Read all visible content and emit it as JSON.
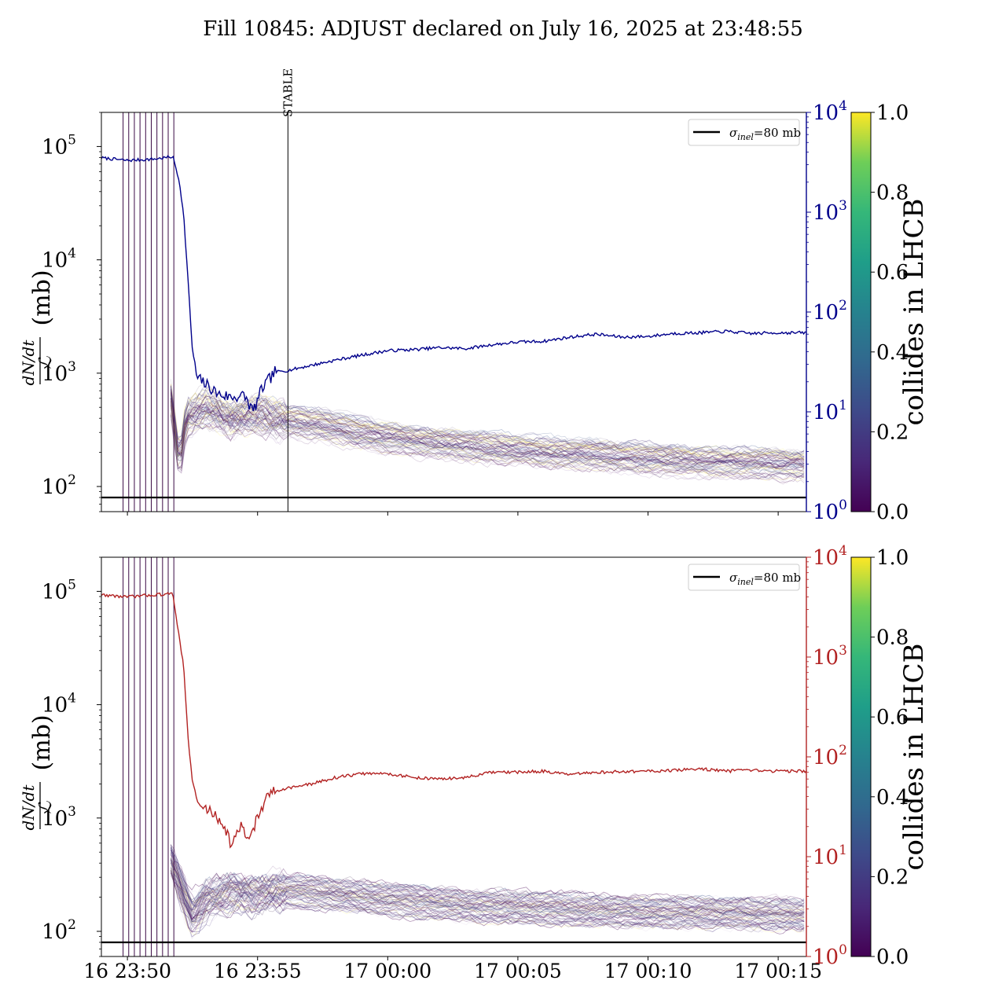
{
  "figure": {
    "title": "Fill 10845: ADJUST declared on July 16, 2025 at 23:48:55"
  },
  "chart_data": [
    {
      "type": "line",
      "panel": "top",
      "ylabel_left": "dN/dt / ℒ (mb)",
      "yscale_left": "log",
      "ylim_left": [
        60,
        200000
      ],
      "yticks_left": [
        "10^2",
        "10^3",
        "10^4",
        "10^5"
      ],
      "yscale_right": "log",
      "ylim_right": [
        1,
        10000
      ],
      "yticks_right": [
        "10^0",
        "10^1",
        "10^2",
        "10^3",
        "10^4"
      ],
      "right_axis_color": "#00008b",
      "xlim": [
        "23:49:00",
        "00:16:05"
      ],
      "xticks": [
        "16 23:50",
        "16 23:55",
        "17 00:00",
        "17 00:05",
        "17 00:10",
        "17 00:15"
      ],
      "xtick_labels_visible": false,
      "legend": {
        "position": "top-right",
        "entries": [
          {
            "label": "σ_inel=80 mb",
            "color": "#000000"
          }
        ]
      },
      "hline": {
        "y": 80,
        "label": "σ_inel=80 mb",
        "color": "#000000"
      },
      "vline_annotation": {
        "x": "23:56:10",
        "label": "STABLE"
      },
      "vlines_early": [
        "23:49:50",
        "23:50:03",
        "23:50:16",
        "23:50:29",
        "23:50:42",
        "23:50:55",
        "23:51:08",
        "23:51:21",
        "23:51:34",
        "23:51:47"
      ],
      "right_series": {
        "color": "#00008b",
        "points": [
          [
            "23:49:00",
            3500
          ],
          [
            "23:50:00",
            3300
          ],
          [
            "23:51:00",
            3400
          ],
          [
            "23:51:45",
            3600
          ],
          [
            "23:52:00",
            2000
          ],
          [
            "23:52:10",
            900
          ],
          [
            "23:52:20",
            200
          ],
          [
            "23:52:30",
            40
          ],
          [
            "23:52:40",
            22
          ],
          [
            "23:53:00",
            19
          ],
          [
            "23:53:30",
            15
          ],
          [
            "23:54:00",
            14
          ],
          [
            "23:54:30",
            14.5
          ],
          [
            "23:54:50",
            10
          ],
          [
            "23:55:10",
            17
          ],
          [
            "23:55:40",
            25
          ],
          [
            "23:56:10",
            26
          ],
          [
            "23:57:00",
            29
          ],
          [
            "23:58:00",
            33
          ],
          [
            "23:59:00",
            37
          ],
          [
            "00:00:00",
            41
          ],
          [
            "00:01:00",
            42
          ],
          [
            "00:02:00",
            44
          ],
          [
            "00:03:00",
            43
          ],
          [
            "00:04:00",
            47
          ],
          [
            "00:05:00",
            50
          ],
          [
            "00:06:00",
            51
          ],
          [
            "00:07:00",
            56
          ],
          [
            "00:08:00",
            60
          ],
          [
            "00:09:00",
            56
          ],
          [
            "00:10:00",
            57
          ],
          [
            "00:11:00",
            61
          ],
          [
            "00:12:00",
            62
          ],
          [
            "00:13:00",
            64
          ],
          [
            "00:14:00",
            61
          ],
          [
            "00:15:00",
            62
          ],
          [
            "00:16:05",
            62
          ]
        ]
      },
      "bunch_band": {
        "colormap": "viridis",
        "centre": [
          [
            "23:51:40",
            600
          ],
          [
            "23:52:00",
            150
          ],
          [
            "23:52:15",
            400
          ],
          [
            "23:53:00",
            500
          ],
          [
            "23:54:00",
            380
          ],
          [
            "23:55:00",
            430
          ],
          [
            "23:56:00",
            380
          ],
          [
            "23:57:00",
            360
          ],
          [
            "23:58:00",
            330
          ],
          [
            "00:00:00",
            270
          ],
          [
            "00:02:00",
            240
          ],
          [
            "00:04:00",
            220
          ],
          [
            "00:06:00",
            200
          ],
          [
            "00:08:00",
            190
          ],
          [
            "00:10:00",
            175
          ],
          [
            "00:12:00",
            165
          ],
          [
            "00:14:00",
            160
          ],
          [
            "00:16:00",
            155
          ]
        ],
        "spread_low": 0.72,
        "spread_high": 1.35
      },
      "colorbar": {
        "label": "collides in LHCB",
        "range": [
          0.0,
          1.0
        ],
        "ticks": [
          "0.0",
          "0.2",
          "0.4",
          "0.6",
          "0.8",
          "1.0"
        ]
      }
    },
    {
      "type": "line",
      "panel": "bottom",
      "ylabel_left": "dN/dt / ℒ (mb)",
      "yscale_left": "log",
      "ylim_left": [
        60,
        200000
      ],
      "yticks_left": [
        "10^2",
        "10^3",
        "10^4",
        "10^5"
      ],
      "yscale_right": "log",
      "ylim_right": [
        1,
        10000
      ],
      "yticks_right": [
        "10^0",
        "10^1",
        "10^2",
        "10^3",
        "10^4"
      ],
      "right_axis_color": "#b22222",
      "xlim": [
        "23:49:00",
        "00:16:05"
      ],
      "xticks": [
        "16 23:50",
        "16 23:55",
        "17 00:00",
        "17 00:05",
        "17 00:10",
        "17 00:15"
      ],
      "xtick_labels_visible": true,
      "legend": {
        "position": "top-right",
        "entries": [
          {
            "label": "σ_inel=80 mb",
            "color": "#000000"
          }
        ]
      },
      "hline": {
        "y": 80,
        "label": "σ_inel=80 mb",
        "color": "#000000"
      },
      "vlines_early": [
        "23:49:50",
        "23:50:03",
        "23:50:16",
        "23:50:29",
        "23:50:42",
        "23:50:55",
        "23:51:08",
        "23:51:21",
        "23:51:34",
        "23:51:47"
      ],
      "right_series": {
        "color": "#b22222",
        "points": [
          [
            "23:49:00",
            4200
          ],
          [
            "23:50:00",
            4000
          ],
          [
            "23:51:00",
            4200
          ],
          [
            "23:51:45",
            4300
          ],
          [
            "23:52:00",
            1500
          ],
          [
            "23:52:10",
            800
          ],
          [
            "23:52:20",
            150
          ],
          [
            "23:52:30",
            55
          ],
          [
            "23:52:45",
            32
          ],
          [
            "23:53:10",
            29
          ],
          [
            "23:53:40",
            22
          ],
          [
            "23:54:00",
            13
          ],
          [
            "23:54:20",
            20
          ],
          [
            "23:54:40",
            15
          ],
          [
            "23:55:00",
            25
          ],
          [
            "23:55:30",
            44
          ],
          [
            "23:56:00",
            48
          ],
          [
            "23:57:00",
            53
          ],
          [
            "23:58:00",
            62
          ],
          [
            "23:59:00",
            68
          ],
          [
            "00:00:00",
            68
          ],
          [
            "00:01:00",
            62
          ],
          [
            "00:02:00",
            60
          ],
          [
            "00:03:00",
            62
          ],
          [
            "00:04:00",
            70
          ],
          [
            "00:05:00",
            70
          ],
          [
            "00:06:00",
            72
          ],
          [
            "00:07:00",
            66
          ],
          [
            "00:08:00",
            70
          ],
          [
            "00:09:00",
            71
          ],
          [
            "00:10:00",
            72
          ],
          [
            "00:11:00",
            73
          ],
          [
            "00:12:00",
            76
          ],
          [
            "00:13:00",
            72
          ],
          [
            "00:14:00",
            73
          ],
          [
            "00:15:00",
            72
          ],
          [
            "00:16:05",
            72
          ]
        ]
      },
      "bunch_band": {
        "colormap": "viridis",
        "centre": [
          [
            "23:51:40",
            400
          ],
          [
            "23:52:10",
            200
          ],
          [
            "23:52:30",
            130
          ],
          [
            "23:53:00",
            180
          ],
          [
            "23:54:00",
            210
          ],
          [
            "23:55:00",
            200
          ],
          [
            "23:56:00",
            220
          ],
          [
            "23:57:00",
            210
          ],
          [
            "23:58:00",
            200
          ],
          [
            "00:00:00",
            180
          ],
          [
            "00:02:00",
            165
          ],
          [
            "00:04:00",
            155
          ],
          [
            "00:06:00",
            150
          ],
          [
            "00:08:00",
            145
          ],
          [
            "00:10:00",
            140
          ],
          [
            "00:12:00",
            138
          ],
          [
            "00:14:00",
            135
          ],
          [
            "00:16:00",
            132
          ]
        ],
        "spread_low": 0.78,
        "spread_high": 1.45
      },
      "colorbar": {
        "label": "collides in LHCB",
        "range": [
          0.0,
          1.0
        ],
        "ticks": [
          "0.0",
          "0.2",
          "0.4",
          "0.6",
          "0.8",
          "1.0"
        ]
      }
    }
  ]
}
